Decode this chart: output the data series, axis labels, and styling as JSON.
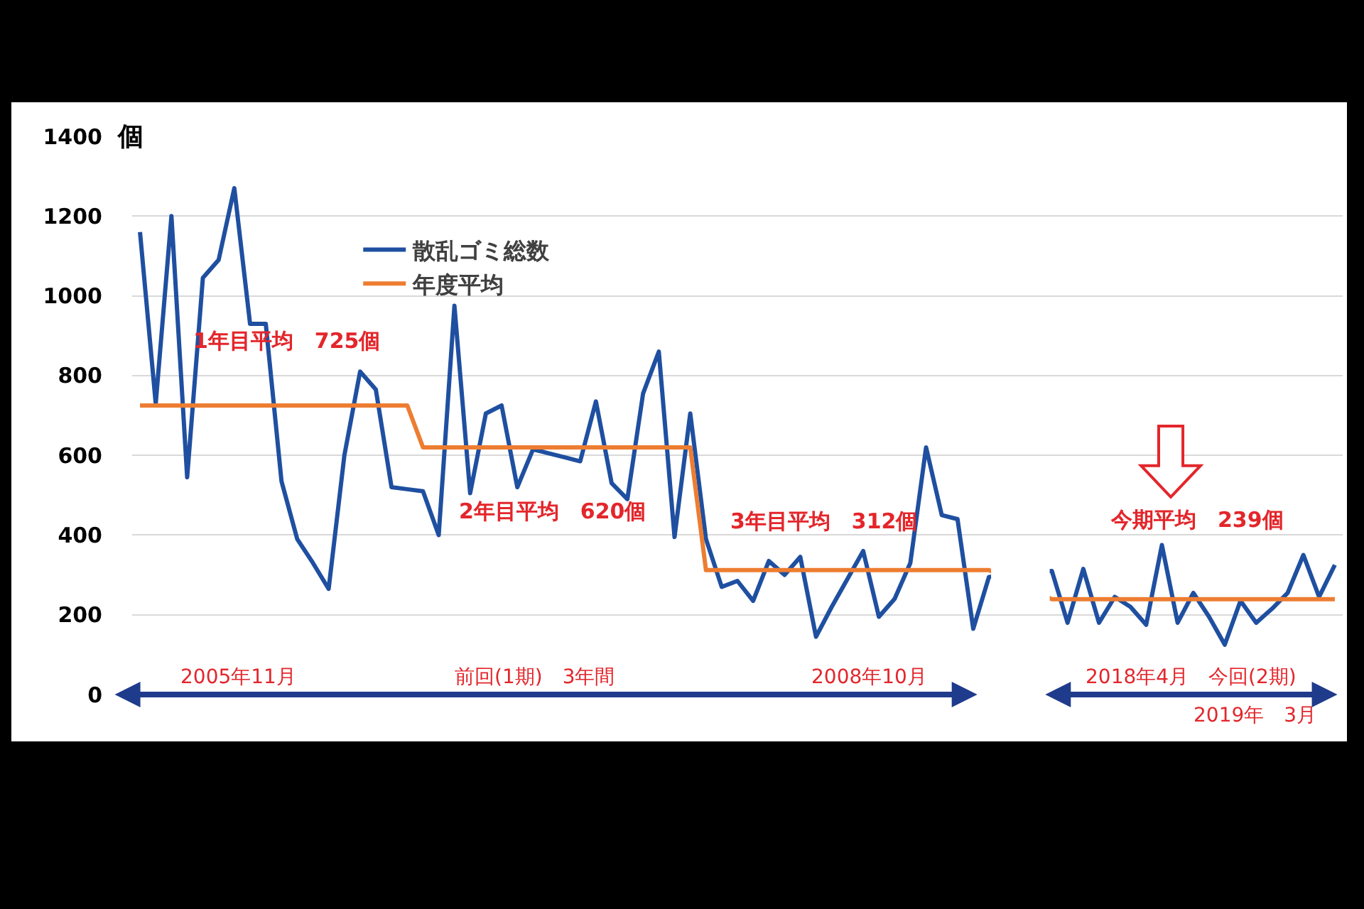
{
  "chart_data": {
    "type": "line",
    "ylabel": "個",
    "categories": [
      null,
      null,
      null,
      null,
      null,
      null,
      null,
      null,
      null,
      null,
      null,
      null,
      null,
      null,
      null,
      null,
      null,
      null,
      null,
      null,
      null,
      null,
      null,
      null,
      null,
      null,
      null,
      null,
      null,
      null,
      null,
      null,
      null,
      null,
      null,
      null,
      null,
      null,
      null,
      null,
      null,
      null,
      null,
      null,
      null,
      null,
      null,
      null,
      null,
      null,
      null,
      null,
      null,
      null,
      null,
      null,
      null,
      null,
      null,
      null,
      null,
      null,
      null,
      null,
      null,
      null,
      null,
      null,
      null,
      null,
      null,
      null,
      null,
      null,
      null,
      null,
      null
    ],
    "series": [
      {
        "name": "散乱ゴミ総数",
        "color": "#1f4fa0",
        "values": [
          1160,
          730,
          1200,
          545,
          1045,
          1090,
          1270,
          930,
          930,
          535,
          390,
          330,
          265,
          600,
          810,
          765,
          520,
          515,
          510,
          400,
          975,
          505,
          705,
          725,
          520,
          615,
          605,
          595,
          585,
          735,
          530,
          490,
          755,
          860,
          395,
          705,
          390,
          270,
          285,
          235,
          335,
          300,
          345,
          145,
          220,
          290,
          360,
          195,
          240,
          330,
          620,
          450,
          440,
          165,
          295,
          null,
          null,
          null,
          310,
          180,
          315,
          180,
          245,
          220,
          175,
          375,
          180,
          255,
          195,
          125,
          235,
          180,
          215,
          255,
          350,
          245,
          325
        ]
      },
      {
        "name": "年度平均",
        "color": "#ed7d31",
        "values": [
          725,
          725,
          725,
          725,
          725,
          725,
          725,
          725,
          725,
          725,
          725,
          725,
          725,
          725,
          725,
          725,
          725,
          725,
          620,
          620,
          620,
          620,
          620,
          620,
          620,
          620,
          620,
          620,
          620,
          620,
          620,
          620,
          620,
          620,
          620,
          620,
          312,
          312,
          312,
          312,
          312,
          312,
          312,
          312,
          312,
          312,
          312,
          312,
          312,
          312,
          312,
          312,
          312,
          312,
          312,
          null,
          null,
          null,
          239,
          239,
          239,
          239,
          239,
          239,
          239,
          239,
          239,
          239,
          239,
          239,
          239,
          239,
          239,
          239,
          239,
          239,
          239
        ]
      }
    ],
    "ylim": [
      0,
      1400
    ],
    "yticks": [
      0,
      200,
      400,
      600,
      800,
      1000,
      1200,
      1400
    ],
    "grid": "y",
    "legend": "top left",
    "tick_labels": "y",
    "annotations": [
      "1年目平均　725個",
      "2年目平均　620個",
      "3年目平均　312個",
      "今期平均　239個",
      "2005年11月",
      "前回(1期)　3年間",
      "2008年10月",
      "2018年4月　今回(2期)",
      "2019年　3月"
    ]
  }
}
